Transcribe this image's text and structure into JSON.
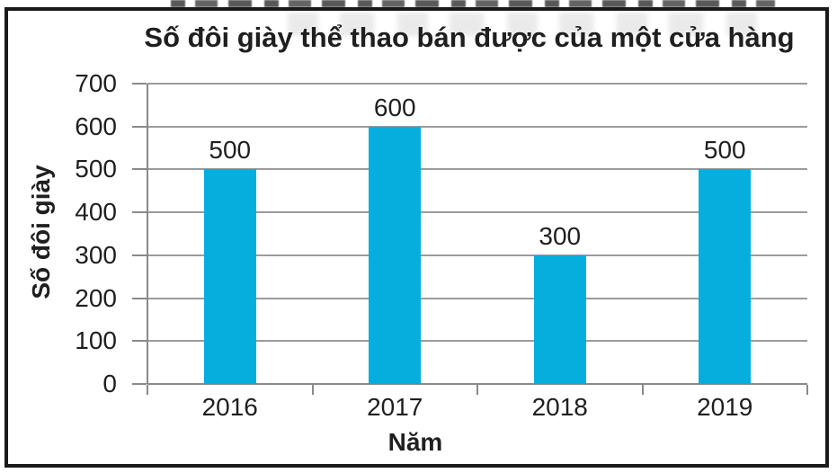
{
  "chart_data": {
    "type": "bar",
    "title": "Số đôi giày thể thao bán được của một cửa hàng",
    "categories": [
      "2016",
      "2017",
      "2018",
      "2019"
    ],
    "values": [
      500,
      600,
      300,
      500
    ],
    "data_labels": [
      "500",
      "600",
      "300",
      "500"
    ],
    "xlabel": "Năm",
    "ylabel": "Số đôi giày",
    "ylim": [
      0,
      700
    ],
    "ytick_interval": 100,
    "yticks": [
      "0",
      "100",
      "200",
      "300",
      "400",
      "500",
      "600",
      "700"
    ],
    "grid": true,
    "legend": false,
    "colors": {
      "bar": "#06AEDE",
      "gridline": "#9B9B9B",
      "axis": "#8A8A8A",
      "text": "#1F1F1F",
      "frame": "#1A1A1A"
    }
  }
}
